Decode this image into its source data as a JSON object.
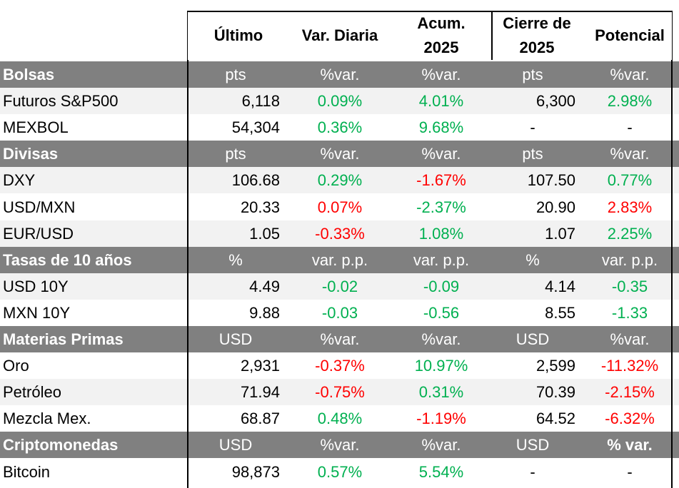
{
  "header": {
    "ultimo": "Último",
    "var_diaria": "Var. Diaria",
    "acum_line1": "Acum.",
    "acum_line2": "2025",
    "cierre_line1": "Cierre de",
    "cierre_line2": "2025",
    "potencial": "Potencial"
  },
  "colors": {
    "section_bg": "#808080",
    "shaded_bg": "#f2f2f2",
    "positive": "#00b050",
    "negative": "#ff0000"
  },
  "rows": [
    {
      "type": "section",
      "label": "Bolsas",
      "ultimo": "pts",
      "var": "%var.",
      "acum": "%var.",
      "cierre": "pts",
      "pot": "%var."
    },
    {
      "type": "shaded",
      "label": "Futuros S&P500",
      "ultimo": "6,118",
      "var": "0.09%",
      "var_c": "pos",
      "acum": "4.01%",
      "acum_c": "pos",
      "cierre": "6,300",
      "pot": "2.98%",
      "pot_c": "pos"
    },
    {
      "type": "white",
      "label": "MEXBOL",
      "ultimo": "54,304",
      "var": "0.36%",
      "var_c": "pos",
      "acum": "9.68%",
      "acum_c": "pos",
      "cierre": "-",
      "cierre_center": true,
      "pot": "-",
      "pot_c": "neu"
    },
    {
      "type": "section",
      "label": "Divisas",
      "ultimo": "pts",
      "var": "%var.",
      "acum": "%var.",
      "cierre": "pts",
      "pot": "%var."
    },
    {
      "type": "shaded",
      "label": "DXY",
      "ultimo": "106.68",
      "var": "0.29%",
      "var_c": "pos",
      "acum": "-1.67%",
      "acum_c": "neg",
      "cierre": "107.50",
      "pot": "0.77%",
      "pot_c": "pos"
    },
    {
      "type": "white",
      "label": "USD/MXN",
      "ultimo": "20.33",
      "var": "0.07%",
      "var_c": "neg",
      "acum": "-2.37%",
      "acum_c": "pos",
      "cierre": "20.90",
      "pot": "2.83%",
      "pot_c": "neg"
    },
    {
      "type": "shaded",
      "label": "EUR/USD",
      "ultimo": "1.05",
      "var": "-0.33%",
      "var_c": "neg",
      "acum": "1.08%",
      "acum_c": "pos",
      "cierre": "1.07",
      "pot": "2.25%",
      "pot_c": "pos"
    },
    {
      "type": "section",
      "label": "Tasas de 10 años",
      "ultimo": "%",
      "var": "var. p.p.",
      "acum": "var. p.p.",
      "cierre": "%",
      "pot": "var. p.p."
    },
    {
      "type": "shaded",
      "label": "USD 10Y",
      "ultimo": "4.49",
      "var": "-0.02",
      "var_c": "pos",
      "acum": "-0.09",
      "acum_c": "pos",
      "cierre": "4.14",
      "pot": "-0.35",
      "pot_c": "pos"
    },
    {
      "type": "white",
      "label": "MXN 10Y",
      "ultimo": "9.88",
      "var": "-0.03",
      "var_c": "pos",
      "acum": "-0.56",
      "acum_c": "pos",
      "cierre": "8.55",
      "pot": "-1.33",
      "pot_c": "pos"
    },
    {
      "type": "section",
      "label": "Materias Primas",
      "ultimo": "USD",
      "var": "%var.",
      "acum": "%var.",
      "cierre": "USD",
      "pot": "%var."
    },
    {
      "type": "white",
      "label": "Oro",
      "ultimo": "2,931",
      "var": "-0.37%",
      "var_c": "neg",
      "acum": "10.97%",
      "acum_c": "pos",
      "cierre": "2,599",
      "pot": "-11.32%",
      "pot_c": "neg"
    },
    {
      "type": "shaded",
      "label": "Petróleo",
      "ultimo": "71.94",
      "var": "-0.75%",
      "var_c": "neg",
      "acum": "0.31%",
      "acum_c": "pos",
      "cierre": "70.39",
      "pot": "-2.15%",
      "pot_c": "neg"
    },
    {
      "type": "white",
      "label": "Mezcla Mex.",
      "ultimo": "68.87",
      "var": "0.48%",
      "var_c": "pos",
      "acum": "-1.19%",
      "acum_c": "neg",
      "cierre": "64.52",
      "pot": "-6.32%",
      "pot_c": "neg"
    },
    {
      "type": "section",
      "label": "Criptomonedas",
      "ultimo": "USD",
      "var": "%var.",
      "acum": "%var.",
      "cierre": "USD",
      "pot": "% var.",
      "pot_bold": true
    },
    {
      "type": "white",
      "label": "Bitcoin",
      "ultimo": "98,873",
      "var": "0.57%",
      "var_c": "pos",
      "acum": "5.54%",
      "acum_c": "pos",
      "cierre": "-",
      "cierre_center": true,
      "pot": "-",
      "pot_c": "neu"
    }
  ]
}
